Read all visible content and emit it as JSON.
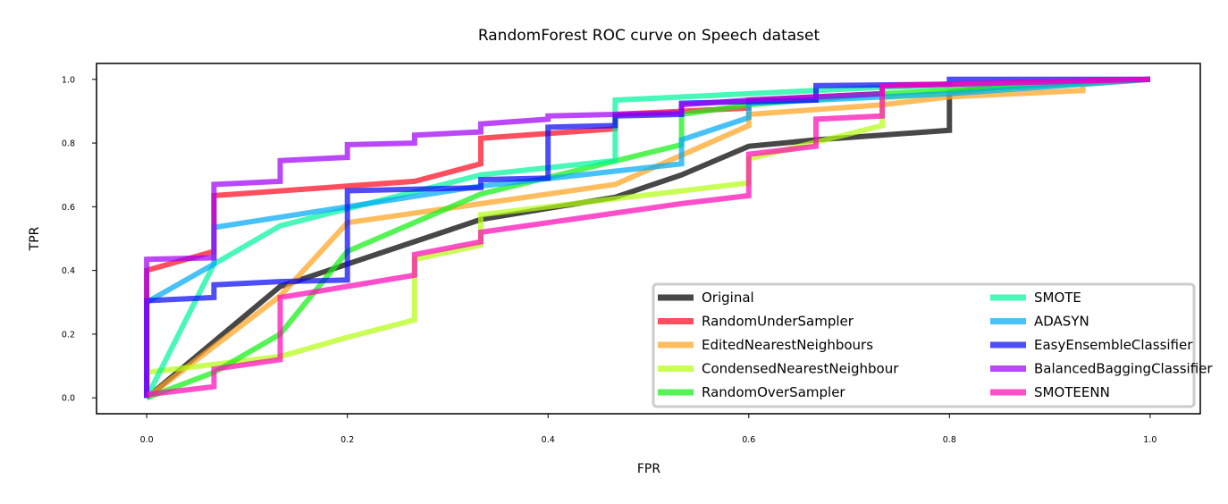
{
  "chart_data": {
    "type": "line",
    "title": "RandomForest ROC curve on Speech dataset",
    "xlabel": "FPR",
    "ylabel": "TPR",
    "xlim": [
      -0.05,
      1.05
    ],
    "ylim": [
      -0.05,
      1.05
    ],
    "xticks": [
      "0.0",
      "0.2",
      "0.4",
      "0.6",
      "0.8",
      "1.0"
    ],
    "yticks": [
      "0.0",
      "0.2",
      "0.4",
      "0.6",
      "0.8",
      "1.0"
    ],
    "grid": false,
    "legend": {
      "position": "lower-right",
      "columns": 2
    },
    "series": [
      {
        "name": "Original",
        "color": "#000000",
        "points": [
          [
            0,
            0
          ],
          [
            0.133,
            0.35
          ],
          [
            0.2,
            0.42
          ],
          [
            0.333,
            0.56
          ],
          [
            0.467,
            0.63
          ],
          [
            0.533,
            0.7
          ],
          [
            0.6,
            0.79
          ],
          [
            0.667,
            0.81
          ],
          [
            0.8,
            0.84
          ],
          [
            0.8,
            0.96
          ],
          [
            0.867,
            0.98
          ],
          [
            1,
            1
          ]
        ]
      },
      {
        "name": "RandomUnderSampler",
        "color": "#ff0a1e",
        "points": [
          [
            0,
            0
          ],
          [
            0,
            0.4
          ],
          [
            0.067,
            0.46
          ],
          [
            0.067,
            0.635
          ],
          [
            0.267,
            0.68
          ],
          [
            0.333,
            0.735
          ],
          [
            0.333,
            0.815
          ],
          [
            0.467,
            0.845
          ],
          [
            0.467,
            0.89
          ],
          [
            0.6,
            0.91
          ],
          [
            0.6,
            0.935
          ],
          [
            0.733,
            0.955
          ],
          [
            0.733,
            0.98
          ],
          [
            1,
            1
          ]
        ]
      },
      {
        "name": "EditedNearestNeighbours",
        "color": "#ffa41e",
        "points": [
          [
            0,
            0
          ],
          [
            0.133,
            0.32
          ],
          [
            0.2,
            0.55
          ],
          [
            0.467,
            0.67
          ],
          [
            0.6,
            0.855
          ],
          [
            0.6,
            0.89
          ],
          [
            0.733,
            0.92
          ],
          [
            0.8,
            0.945
          ],
          [
            0.933,
            0.965
          ],
          [
            0.933,
            0.985
          ],
          [
            1,
            1
          ]
        ]
      },
      {
        "name": "CondensedNearestNeighbour",
        "color": "#b4ff14",
        "points": [
          [
            0,
            0.08
          ],
          [
            0.133,
            0.13
          ],
          [
            0.2,
            0.19
          ],
          [
            0.267,
            0.245
          ],
          [
            0.267,
            0.435
          ],
          [
            0.333,
            0.48
          ],
          [
            0.333,
            0.575
          ],
          [
            0.6,
            0.675
          ],
          [
            0.6,
            0.75
          ],
          [
            0.733,
            0.855
          ],
          [
            0.733,
            0.94
          ],
          [
            0.8,
            0.96
          ],
          [
            1,
            1
          ]
        ]
      },
      {
        "name": "RandomOverSampler",
        "color": "#14f014",
        "points": [
          [
            0,
            0
          ],
          [
            0.067,
            0.08
          ],
          [
            0.133,
            0.2
          ],
          [
            0.2,
            0.46
          ],
          [
            0.333,
            0.64
          ],
          [
            0.533,
            0.795
          ],
          [
            0.533,
            0.89
          ],
          [
            0.6,
            0.92
          ],
          [
            0.733,
            0.955
          ],
          [
            1,
            1
          ]
        ]
      },
      {
        "name": "SMOTE",
        "color": "#00f59e",
        "points": [
          [
            0,
            0
          ],
          [
            0.067,
            0.42
          ],
          [
            0.133,
            0.54
          ],
          [
            0.333,
            0.7
          ],
          [
            0.467,
            0.745
          ],
          [
            0.467,
            0.935
          ],
          [
            0.6,
            0.955
          ],
          [
            0.733,
            0.975
          ],
          [
            1,
            1
          ]
        ]
      },
      {
        "name": "ADASYN",
        "color": "#00aaf5",
        "points": [
          [
            0,
            0
          ],
          [
            0,
            0.3
          ],
          [
            0.067,
            0.42
          ],
          [
            0.067,
            0.535
          ],
          [
            0.333,
            0.665
          ],
          [
            0.533,
            0.735
          ],
          [
            0.533,
            0.81
          ],
          [
            0.6,
            0.88
          ],
          [
            0.6,
            0.925
          ],
          [
            0.8,
            0.955
          ],
          [
            1,
            1
          ]
        ]
      },
      {
        "name": "EasyEnsembleClassifier",
        "color": "#0a0af5",
        "points": [
          [
            0,
            0
          ],
          [
            0,
            0.305
          ],
          [
            0.067,
            0.315
          ],
          [
            0.067,
            0.355
          ],
          [
            0.133,
            0.365
          ],
          [
            0.2,
            0.37
          ],
          [
            0.2,
            0.65
          ],
          [
            0.333,
            0.66
          ],
          [
            0.333,
            0.685
          ],
          [
            0.4,
            0.69
          ],
          [
            0.4,
            0.85
          ],
          [
            0.467,
            0.855
          ],
          [
            0.467,
            0.885
          ],
          [
            0.533,
            0.89
          ],
          [
            0.533,
            0.925
          ],
          [
            0.667,
            0.935
          ],
          [
            0.667,
            0.98
          ],
          [
            0.8,
            0.985
          ],
          [
            0.8,
            1.0
          ],
          [
            1,
            1
          ]
        ]
      },
      {
        "name": "BalancedBaggingClassifier",
        "color": "#a000f5",
        "points": [
          [
            0,
            0
          ],
          [
            0,
            0.435
          ],
          [
            0.067,
            0.44
          ],
          [
            0.067,
            0.67
          ],
          [
            0.133,
            0.68
          ],
          [
            0.133,
            0.745
          ],
          [
            0.2,
            0.755
          ],
          [
            0.2,
            0.795
          ],
          [
            0.267,
            0.8
          ],
          [
            0.267,
            0.825
          ],
          [
            0.333,
            0.835
          ],
          [
            0.333,
            0.86
          ],
          [
            0.4,
            0.875
          ],
          [
            0.4,
            0.885
          ],
          [
            0.533,
            0.895
          ],
          [
            0.533,
            0.92
          ],
          [
            0.6,
            0.935
          ],
          [
            0.733,
            0.955
          ],
          [
            0.733,
            0.98
          ],
          [
            0.8,
            0.985
          ],
          [
            1,
            1
          ]
        ]
      },
      {
        "name": "SMOTEENN",
        "color": "#ff0ab4",
        "points": [
          [
            0,
            0.01
          ],
          [
            0.067,
            0.035
          ],
          [
            0.067,
            0.09
          ],
          [
            0.133,
            0.12
          ],
          [
            0.133,
            0.315
          ],
          [
            0.2,
            0.35
          ],
          [
            0.267,
            0.385
          ],
          [
            0.267,
            0.45
          ],
          [
            0.333,
            0.49
          ],
          [
            0.333,
            0.52
          ],
          [
            0.533,
            0.61
          ],
          [
            0.6,
            0.635
          ],
          [
            0.6,
            0.765
          ],
          [
            0.667,
            0.79
          ],
          [
            0.667,
            0.875
          ],
          [
            0.733,
            0.885
          ],
          [
            0.733,
            0.98
          ],
          [
            0.8,
            0.985
          ],
          [
            1,
            1
          ]
        ]
      }
    ]
  }
}
